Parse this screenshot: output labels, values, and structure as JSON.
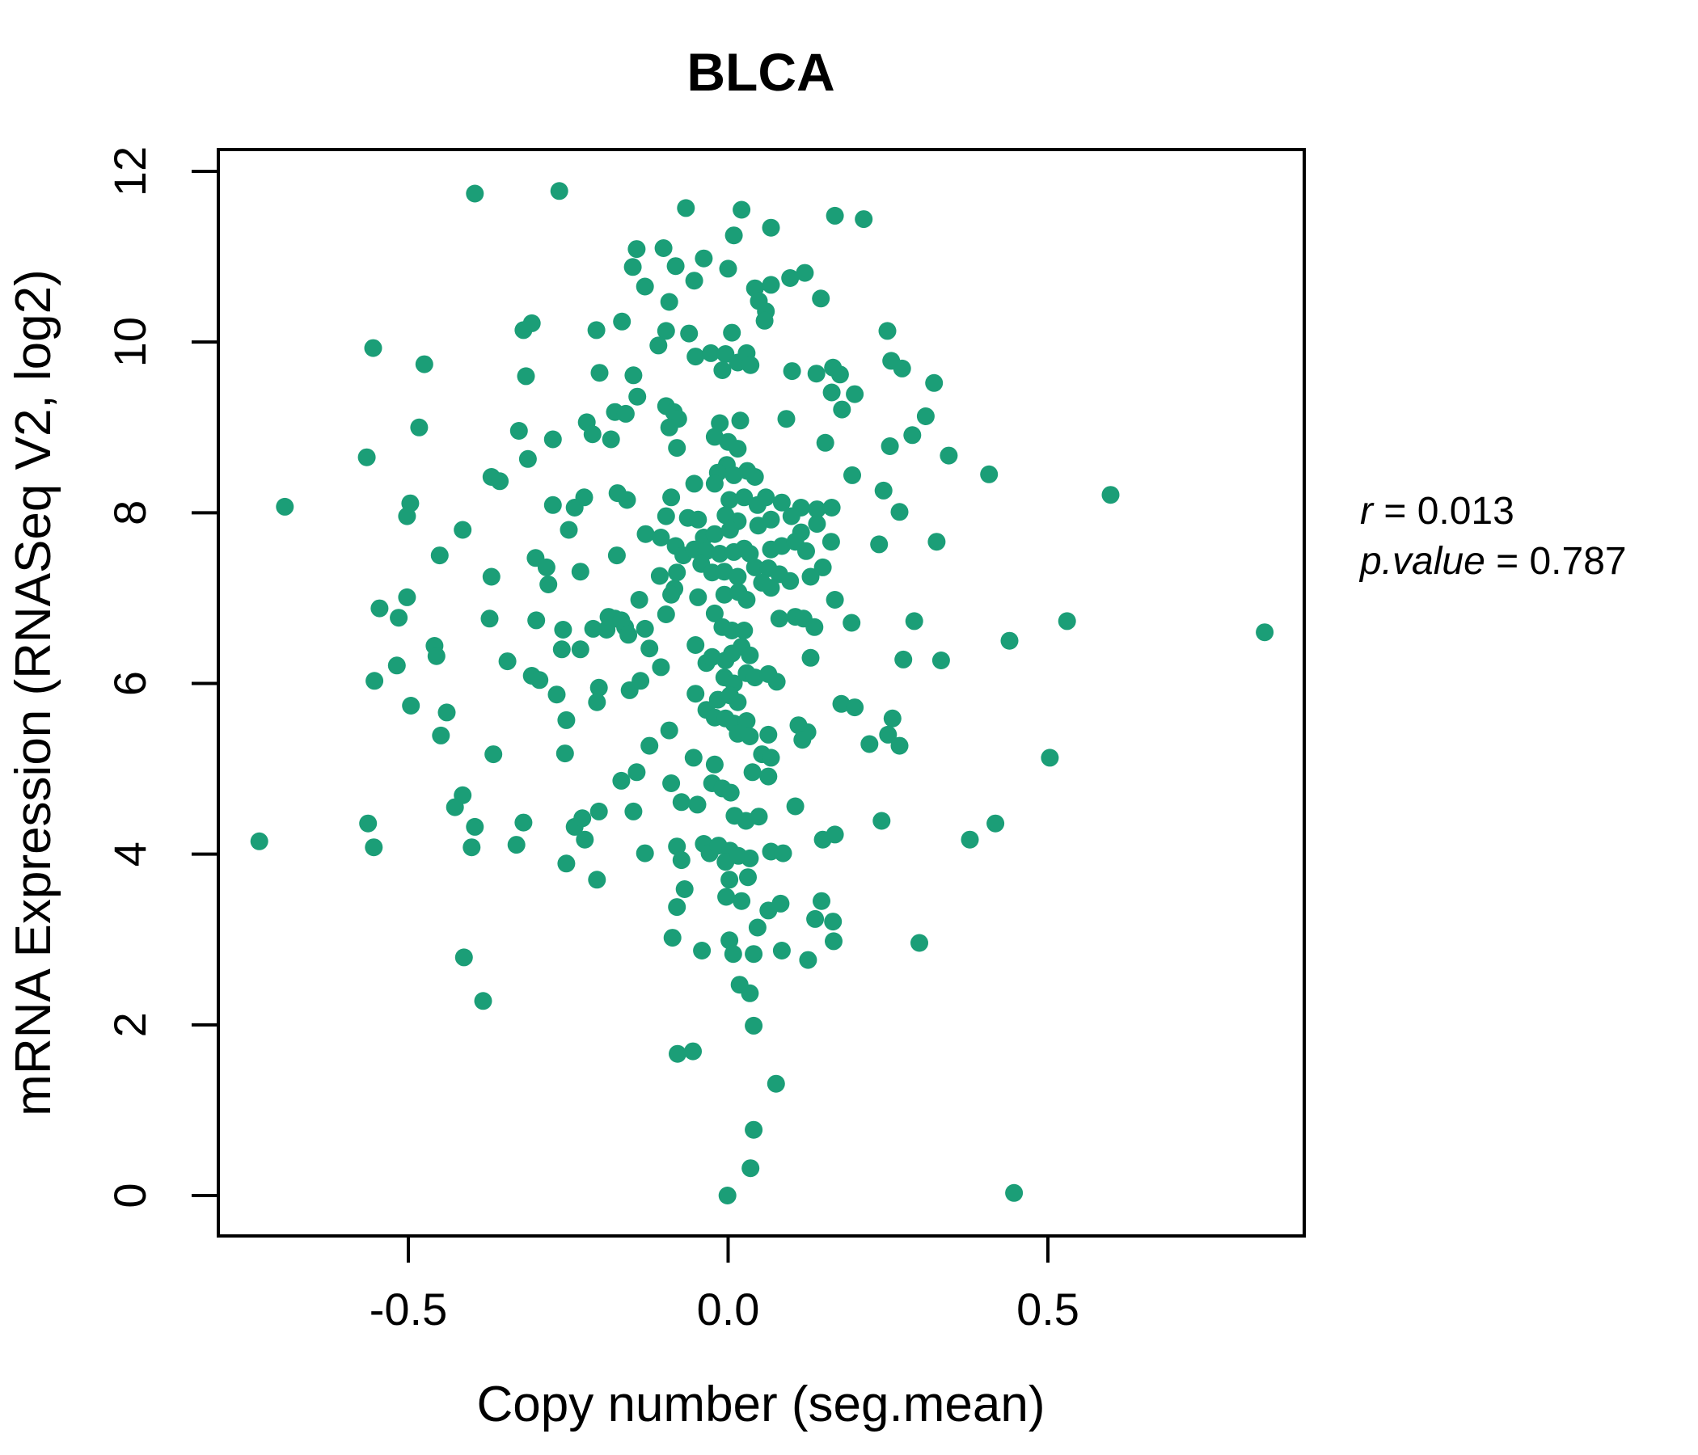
{
  "title": "BLCA",
  "annotation": {
    "r_var": "r",
    "r_rest": " = 0.013",
    "p_var": "p.value",
    "p_rest": " = 0.787"
  },
  "chart_data": {
    "type": "scatter",
    "title": "BLCA",
    "xlabel": "Copy number (seg.mean)",
    "ylabel": "mRNA Expression (RNASeq V2, log2)",
    "xlim": [
      -0.797,
      0.901
    ],
    "ylim": [
      -0.47,
      12.26
    ],
    "x_ticks": [
      -0.5,
      0.0,
      0.5
    ],
    "x_tick_labels": [
      "-0.5",
      "0.0",
      "0.5"
    ],
    "y_ticks": [
      0,
      2,
      4,
      6,
      8,
      10,
      12
    ],
    "y_tick_labels": [
      "0",
      "2",
      "4",
      "6",
      "8",
      "10",
      "12"
    ],
    "grid": false,
    "legend_position": "none",
    "point_color": "#1b9e77",
    "title_color": "#1b9e77",
    "stats": {
      "r": 0.013,
      "p_value": 0.787
    },
    "points": [
      [
        -0.396,
        11.74
      ],
      [
        -0.264,
        11.77
      ],
      [
        -0.32,
        10.14
      ],
      [
        -0.307,
        10.22
      ],
      [
        -0.555,
        9.93
      ],
      [
        -0.475,
        9.74
      ],
      [
        -0.316,
        9.6
      ],
      [
        -0.483,
        9.0
      ],
      [
        -0.327,
        8.96
      ],
      [
        -0.274,
        8.86
      ],
      [
        -0.565,
        8.65
      ],
      [
        -0.313,
        8.63
      ],
      [
        -0.37,
        8.42
      ],
      [
        -0.357,
        8.37
      ],
      [
        -0.497,
        8.11
      ],
      [
        -0.693,
        8.07
      ],
      [
        -0.274,
        8.09
      ],
      [
        -0.24,
        8.06
      ],
      [
        -0.066,
        11.57
      ],
      [
        0.021,
        11.55
      ],
      [
        0.167,
        11.48
      ],
      [
        0.212,
        11.44
      ],
      [
        0.067,
        11.34
      ],
      [
        0.009,
        11.25
      ],
      [
        -0.143,
        11.09
      ],
      [
        -0.101,
        11.1
      ],
      [
        -0.149,
        10.88
      ],
      [
        -0.082,
        10.89
      ],
      [
        -0.038,
        10.98
      ],
      [
        0.0,
        10.86
      ],
      [
        -0.053,
        10.72
      ],
      [
        0.042,
        10.63
      ],
      [
        0.067,
        10.67
      ],
      [
        0.097,
        10.75
      ],
      [
        0.12,
        10.81
      ],
      [
        -0.13,
        10.65
      ],
      [
        -0.092,
        10.47
      ],
      [
        0.048,
        10.48
      ],
      [
        0.145,
        10.51
      ],
      [
        0.059,
        10.36
      ],
      [
        0.057,
        10.25
      ],
      [
        -0.206,
        10.14
      ],
      [
        -0.166,
        10.24
      ],
      [
        -0.097,
        10.13
      ],
      [
        -0.109,
        9.96
      ],
      [
        -0.061,
        10.1
      ],
      [
        0.006,
        10.11
      ],
      [
        0.249,
        10.13
      ],
      [
        -0.051,
        9.83
      ],
      [
        -0.027,
        9.87
      ],
      [
        -0.004,
        9.86
      ],
      [
        0.015,
        9.76
      ],
      [
        0.029,
        9.87
      ],
      [
        0.035,
        9.73
      ],
      [
        -0.009,
        9.67
      ],
      [
        0.255,
        9.78
      ],
      [
        0.272,
        9.69
      ],
      [
        -0.201,
        9.64
      ],
      [
        -0.148,
        9.61
      ],
      [
        0.1,
        9.66
      ],
      [
        0.138,
        9.63
      ],
      [
        0.164,
        9.7
      ],
      [
        0.175,
        9.62
      ],
      [
        0.322,
        9.52
      ],
      [
        -0.142,
        9.36
      ],
      [
        0.162,
        9.41
      ],
      [
        0.198,
        9.39
      ],
      [
        0.178,
        9.21
      ],
      [
        -0.177,
        9.18
      ],
      [
        -0.16,
        9.16
      ],
      [
        -0.097,
        9.25
      ],
      [
        -0.085,
        9.18
      ],
      [
        -0.078,
        9.1
      ],
      [
        -0.092,
        9.0
      ],
      [
        -0.221,
        9.06
      ],
      [
        -0.212,
        8.92
      ],
      [
        -0.183,
        8.86
      ],
      [
        -0.013,
        9.05
      ],
      [
        0.019,
        9.08
      ],
      [
        -0.021,
        8.89
      ],
      [
        0.0,
        8.83
      ],
      [
        0.015,
        8.75
      ],
      [
        0.03,
        8.49
      ],
      [
        -0.002,
        8.56
      ],
      [
        -0.016,
        8.47
      ],
      [
        0.009,
        8.44
      ],
      [
        0.042,
        8.42
      ],
      [
        0.091,
        9.1
      ],
      [
        0.152,
        8.82
      ],
      [
        0.253,
        8.78
      ],
      [
        0.194,
        8.44
      ],
      [
        -0.08,
        8.76
      ],
      [
        -0.053,
        8.34
      ],
      [
        -0.021,
        8.34
      ],
      [
        -0.173,
        8.23
      ],
      [
        -0.158,
        8.15
      ],
      [
        -0.089,
        8.18
      ],
      [
        0.002,
        8.15
      ],
      [
        0.025,
        8.18
      ],
      [
        0.046,
        8.09
      ],
      [
        0.059,
        8.18
      ],
      [
        0.084,
        8.12
      ],
      [
        0.114,
        8.06
      ],
      [
        0.139,
        8.04
      ],
      [
        0.162,
        8.06
      ],
      [
        0.268,
        8.01
      ],
      [
        -0.225,
        8.18
      ],
      [
        0.345,
        8.67
      ],
      [
        0.408,
        8.45
      ],
      [
        0.598,
        8.21
      ],
      [
        0.309,
        9.13
      ],
      [
        0.288,
        8.91
      ],
      [
        0.243,
        8.26
      ],
      [
        -0.502,
        7.96
      ],
      [
        -0.415,
        7.8
      ],
      [
        -0.249,
        7.8
      ],
      [
        -0.231,
        7.31
      ],
      [
        -0.451,
        7.5
      ],
      [
        -0.37,
        7.25
      ],
      [
        -0.301,
        7.47
      ],
      [
        -0.284,
        7.36
      ],
      [
        -0.281,
        7.16
      ],
      [
        -0.502,
        7.01
      ],
      [
        -0.545,
        6.88
      ],
      [
        -0.515,
        6.77
      ],
      [
        -0.373,
        6.76
      ],
      [
        -0.3,
        6.74
      ],
      [
        -0.258,
        6.63
      ],
      [
        -0.26,
        6.4
      ],
      [
        -0.459,
        6.44
      ],
      [
        -0.456,
        6.32
      ],
      [
        -0.518,
        6.21
      ],
      [
        -0.553,
        6.03
      ],
      [
        -0.345,
        6.26
      ],
      [
        -0.307,
        6.09
      ],
      [
        -0.295,
        6.04
      ],
      [
        -0.268,
        5.87
      ],
      [
        -0.496,
        5.74
      ],
      [
        -0.44,
        5.66
      ],
      [
        -0.449,
        5.39
      ],
      [
        -0.253,
        5.57
      ],
      [
        -0.367,
        5.17
      ],
      [
        -0.255,
        5.18
      ],
      [
        -0.415,
        4.69
      ],
      [
        -0.427,
        4.55
      ],
      [
        -0.396,
        4.32
      ],
      [
        -0.32,
        4.37
      ],
      [
        -0.563,
        4.36
      ],
      [
        -0.733,
        4.15
      ],
      [
        -0.554,
        4.08
      ],
      [
        -0.401,
        4.08
      ],
      [
        -0.331,
        4.11
      ],
      [
        -0.24,
        4.32
      ],
      [
        -0.253,
        3.89
      ],
      [
        -0.231,
        6.4
      ],
      [
        -0.097,
        7.96
      ],
      [
        -0.063,
        7.94
      ],
      [
        -0.047,
        7.92
      ],
      [
        -0.004,
        7.97
      ],
      [
        0.015,
        7.9
      ],
      [
        0.047,
        7.85
      ],
      [
        0.067,
        7.92
      ],
      [
        0.099,
        7.96
      ],
      [
        0.114,
        7.77
      ],
      [
        0.139,
        7.87
      ],
      [
        0.236,
        7.63
      ],
      [
        0.326,
        7.66
      ],
      [
        -0.129,
        7.75
      ],
      [
        -0.105,
        7.71
      ],
      [
        -0.038,
        7.71
      ],
      [
        -0.021,
        7.75
      ],
      [
        0.003,
        7.8
      ],
      [
        0.025,
        7.58
      ],
      [
        -0.174,
        7.5
      ],
      [
        -0.082,
        7.61
      ],
      [
        -0.07,
        7.5
      ],
      [
        -0.053,
        7.57
      ],
      [
        -0.034,
        7.55
      ],
      [
        -0.013,
        7.52
      ],
      [
        0.009,
        7.54
      ],
      [
        0.034,
        7.52
      ],
      [
        0.067,
        7.57
      ],
      [
        0.084,
        7.61
      ],
      [
        0.105,
        7.66
      ],
      [
        0.122,
        7.55
      ],
      [
        -0.107,
        7.26
      ],
      [
        -0.084,
        7.11
      ],
      [
        -0.08,
        7.3
      ],
      [
        -0.042,
        7.4
      ],
      [
        -0.025,
        7.3
      ],
      [
        -0.006,
        7.31
      ],
      [
        0.015,
        7.25
      ],
      [
        0.042,
        7.36
      ],
      [
        0.063,
        7.35
      ],
      [
        0.08,
        7.28
      ],
      [
        0.097,
        7.2
      ],
      [
        0.129,
        7.25
      ],
      [
        0.148,
        7.36
      ],
      [
        0.161,
        7.66
      ],
      [
        0.053,
        7.18
      ],
      [
        0.067,
        7.12
      ],
      [
        -0.089,
        7.04
      ],
      [
        -0.047,
        7.01
      ],
      [
        -0.006,
        7.04
      ],
      [
        0.016,
        7.07
      ],
      [
        0.029,
        6.98
      ],
      [
        -0.139,
        6.98
      ],
      [
        0.167,
        6.98
      ],
      [
        -0.177,
        6.76
      ],
      [
        -0.161,
        6.66
      ],
      [
        -0.13,
        6.64
      ],
      [
        -0.097,
        6.81
      ],
      [
        -0.021,
        6.82
      ],
      [
        -0.009,
        6.66
      ],
      [
        0.006,
        6.62
      ],
      [
        0.025,
        6.62
      ],
      [
        0.08,
        6.76
      ],
      [
        0.105,
        6.78
      ],
      [
        0.118,
        6.76
      ],
      [
        0.135,
        6.66
      ],
      [
        0.193,
        6.71
      ],
      [
        0.291,
        6.73
      ],
      [
        -0.19,
        6.63
      ],
      [
        -0.187,
        6.78
      ],
      [
        -0.167,
        6.74
      ],
      [
        -0.211,
        6.64
      ],
      [
        -0.156,
        6.57
      ],
      [
        -0.123,
        6.41
      ],
      [
        -0.105,
        6.19
      ],
      [
        -0.051,
        6.45
      ],
      [
        -0.034,
        6.24
      ],
      [
        -0.025,
        6.31
      ],
      [
        -0.004,
        6.27
      ],
      [
        0.006,
        6.35
      ],
      [
        0.021,
        6.43
      ],
      [
        0.034,
        6.33
      ],
      [
        0.129,
        6.3
      ],
      [
        0.274,
        6.28
      ],
      [
        0.333,
        6.27
      ],
      [
        -0.202,
        5.95
      ],
      [
        -0.205,
        5.78
      ],
      [
        -0.154,
        5.92
      ],
      [
        -0.137,
        6.03
      ],
      [
        -0.006,
        6.07
      ],
      [
        0.009,
        6.0
      ],
      [
        0.029,
        6.12
      ],
      [
        0.042,
        6.07
      ],
      [
        0.063,
        6.11
      ],
      [
        0.076,
        6.02
      ],
      [
        -0.051,
        5.88
      ],
      [
        -0.016,
        5.81
      ],
      [
        0.003,
        5.86
      ],
      [
        0.015,
        5.78
      ],
      [
        -0.034,
        5.69
      ],
      [
        -0.021,
        5.6
      ],
      [
        -0.004,
        5.59
      ],
      [
        0.009,
        5.53
      ],
      [
        0.029,
        5.56
      ],
      [
        0.177,
        5.76
      ],
      [
        0.198,
        5.72
      ],
      [
        0.257,
        5.59
      ],
      [
        0.25,
        5.4
      ],
      [
        0.268,
        5.27
      ],
      [
        0.11,
        5.51
      ],
      [
        0.124,
        5.43
      ],
      [
        0.116,
        5.34
      ],
      [
        -0.092,
        5.45
      ],
      [
        -0.123,
        5.27
      ],
      [
        0.015,
        5.41
      ],
      [
        0.034,
        5.38
      ],
      [
        0.063,
        5.4
      ],
      [
        0.221,
        5.29
      ],
      [
        -0.054,
        5.13
      ],
      [
        -0.021,
        5.05
      ],
      [
        0.053,
        5.17
      ],
      [
        0.067,
        5.13
      ],
      [
        0.038,
        4.96
      ],
      [
        0.063,
        4.91
      ],
      [
        -0.167,
        4.86
      ],
      [
        -0.143,
        4.96
      ],
      [
        -0.089,
        4.83
      ],
      [
        -0.025,
        4.83
      ],
      [
        -0.009,
        4.77
      ],
      [
        0.004,
        4.72
      ],
      [
        -0.073,
        4.61
      ],
      [
        -0.048,
        4.58
      ],
      [
        0.105,
        4.56
      ],
      [
        -0.202,
        4.5
      ],
      [
        -0.148,
        4.5
      ],
      [
        0.01,
        4.45
      ],
      [
        0.028,
        4.39
      ],
      [
        0.048,
        4.44
      ],
      [
        0.148,
        4.17
      ],
      [
        0.167,
        4.23
      ],
      [
        0.24,
        4.39
      ],
      [
        -0.228,
        4.42
      ],
      [
        -0.224,
        4.17
      ],
      [
        -0.13,
        4.01
      ],
      [
        -0.08,
        4.09
      ],
      [
        -0.073,
        3.93
      ],
      [
        -0.038,
        4.12
      ],
      [
        -0.029,
        4.01
      ],
      [
        -0.015,
        4.1
      ],
      [
        0.003,
        4.04
      ],
      [
        -0.004,
        3.91
      ],
      [
        0.016,
        3.98
      ],
      [
        0.034,
        3.95
      ],
      [
        0.067,
        4.03
      ],
      [
        0.086,
        4.01
      ],
      [
        0.53,
        6.73
      ],
      [
        0.44,
        6.5
      ],
      [
        0.839,
        6.6
      ],
      [
        0.503,
        5.13
      ],
      [
        0.418,
        4.36
      ],
      [
        0.378,
        4.17
      ],
      [
        -0.205,
        3.7
      ],
      [
        -0.068,
        3.59
      ],
      [
        -0.08,
        3.38
      ],
      [
        -0.003,
        3.5
      ],
      [
        0.021,
        3.45
      ],
      [
        0.063,
        3.34
      ],
      [
        0.082,
        3.42
      ],
      [
        0.146,
        3.45
      ],
      [
        0.046,
        3.14
      ],
      [
        0.136,
        3.24
      ],
      [
        0.164,
        3.21
      ],
      [
        -0.087,
        3.02
      ],
      [
        -0.041,
        2.87
      ],
      [
        0.002,
        2.99
      ],
      [
        0.008,
        2.83
      ],
      [
        0.04,
        2.83
      ],
      [
        0.084,
        2.87
      ],
      [
        0.125,
        2.76
      ],
      [
        0.165,
        2.98
      ],
      [
        0.299,
        2.96
      ],
      [
        0.018,
        2.47
      ],
      [
        0.034,
        2.37
      ],
      [
        0.04,
        1.99
      ],
      [
        -0.079,
        1.66
      ],
      [
        -0.055,
        1.69
      ],
      [
        0.075,
        1.31
      ],
      [
        0.04,
        0.77
      ],
      [
        0.035,
        0.32
      ],
      [
        -0.001,
        0.0
      ],
      [
        0.002,
        3.7
      ],
      [
        0.031,
        3.73
      ],
      [
        -0.413,
        2.79
      ],
      [
        -0.383,
        2.28
      ],
      [
        0.447,
        0.03
      ]
    ]
  }
}
